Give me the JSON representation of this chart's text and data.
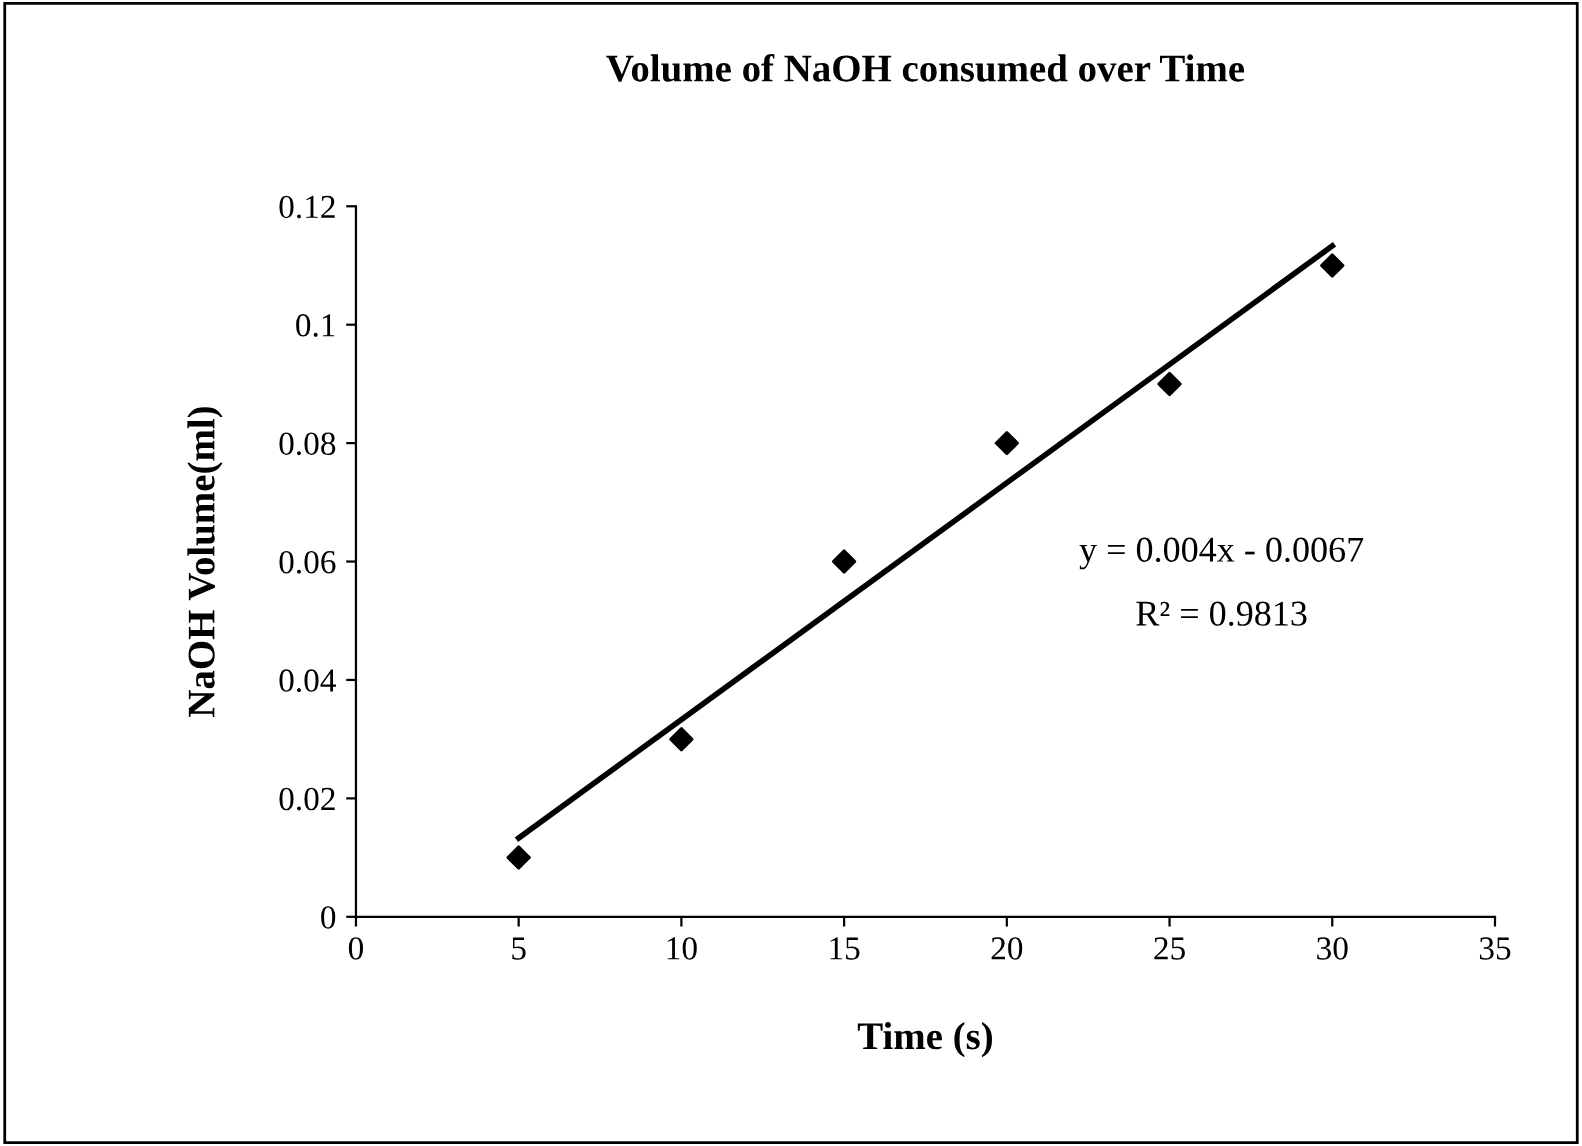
{
  "chart_data": {
    "type": "scatter",
    "title": "Volume of NaOH consumed over Time",
    "xlabel": "Time (s)",
    "ylabel": "NaOH Volume(ml)",
    "x": [
      5,
      10,
      15,
      20,
      25,
      30
    ],
    "series": [
      {
        "color": "#000000",
        "marker": "diamond",
        "values": [
          0.01,
          0.03,
          0.06,
          0.08,
          0.09,
          0.11
        ]
      },
      {
        "type": "line",
        "color": "#000000",
        "x": [
          5,
          30
        ],
        "values": [
          0.0133,
          0.1133
        ]
      }
    ],
    "annotations": [
      "y = 0.004x - 0.0067",
      "R² = 0.9813"
    ],
    "xlim": [
      0,
      35
    ],
    "xticks": [
      0,
      5,
      10,
      15,
      20,
      25,
      30,
      35
    ],
    "ylim": [
      0,
      0.12
    ],
    "yticks": [
      0,
      0.02,
      0.04,
      0.06,
      0.08,
      0.1,
      0.12
    ],
    "grid": false,
    "legend": false
  }
}
